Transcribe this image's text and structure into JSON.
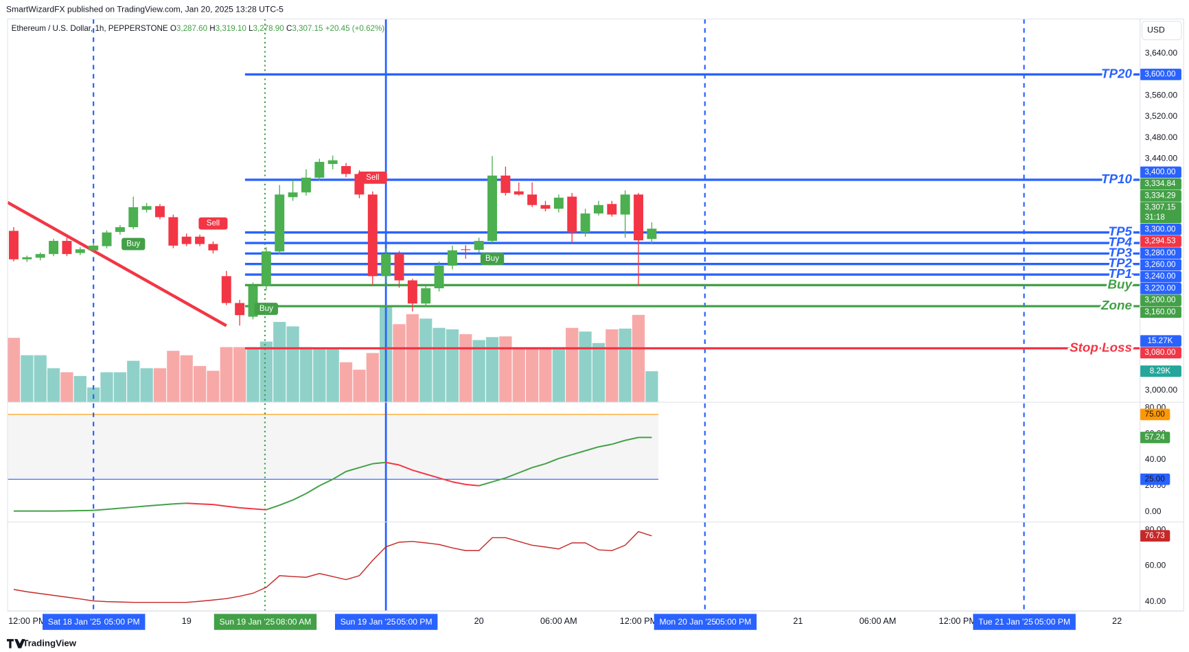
{
  "header": {
    "publisher": "SmartWizardFX published on TradingView.com, Jan 20, 2025 13:28 UTC-5",
    "symbol": "Ethereum / U.S. Dollar, 1h, PEPPERSTONE",
    "ohlc": [
      {
        "key": "O",
        "value": "3,287.60"
      },
      {
        "key": "H",
        "value": "3,319.10"
      },
      {
        "key": "L",
        "value": "3,278.90"
      },
      {
        "key": "C",
        "value": "3,307.15"
      }
    ],
    "change": "+20.45 (+0.62%)"
  },
  "currency": "USD",
  "footer": "TradingView",
  "chart_data": {
    "type": "candlestick",
    "up_color": "#4caf50",
    "down_color": "#f23645",
    "xlim": [
      -0.46,
      84.7
    ],
    "ylim": [
      2978.3,
      3697.9
    ],
    "yticks": [
      {
        "value": 3640,
        "label": "3,640.00"
      },
      {
        "value": 3560,
        "label": "3,560.00"
      },
      {
        "value": 3520,
        "label": "3,520.00"
      },
      {
        "value": 3480,
        "label": "3,480.00"
      },
      {
        "value": 3440,
        "label": "3,440.00"
      },
      {
        "value": 3000,
        "label": "3,000.00"
      }
    ],
    "xticks": [
      {
        "value": 1,
        "label": "12:00 PM"
      },
      {
        "value": 13,
        "label": "19"
      },
      {
        "value": 35,
        "label": "20"
      },
      {
        "value": 41,
        "label": "06:00 AM"
      },
      {
        "value": 47,
        "label": "12:00 PM"
      },
      {
        "value": 59,
        "label": "21"
      },
      {
        "value": 65,
        "label": "06:00 AM"
      },
      {
        "value": 71,
        "label": "12:00 PM"
      },
      {
        "value": 83,
        "label": "22"
      }
    ],
    "open": [
      3303,
      3249,
      3252,
      3259,
      3284,
      3261,
      3266,
      3274,
      3301,
      3310,
      3343,
      3350,
      3329,
      3292,
      3292,
      3278,
      3217,
      3166,
      3140,
      3198,
      3264,
      3367,
      3376,
      3404,
      3430,
      3426,
      3411,
      3372,
      3217,
      3259,
      3209,
      3165,
      3194,
      3237,
      3268,
      3267,
      3284,
      3408,
      3378,
      3372,
      3352,
      3345,
      3368,
      3300,
      3336,
      3354,
      3334,
      3372,
      3287.6
    ],
    "high": [
      3310,
      3256,
      3262,
      3288,
      3290,
      3272,
      3280,
      3304,
      3314,
      3368,
      3356,
      3354,
      3334,
      3298,
      3296,
      3283,
      3227,
      3172,
      3205,
      3272,
      3390,
      3400,
      3420,
      3440,
      3446,
      3432,
      3418,
      3378,
      3270,
      3265,
      3212,
      3200,
      3245,
      3275,
      3276,
      3290,
      3445,
      3425,
      3395,
      3395,
      3360,
      3372,
      3375,
      3345,
      3360,
      3360,
      3380,
      3375,
      3319.1
    ],
    "low": [
      3245,
      3244,
      3247,
      3255,
      3255,
      3257,
      3262,
      3270,
      3296,
      3306,
      3338,
      3325,
      3270,
      3274,
      3274,
      3260,
      3162,
      3123,
      3135,
      3190,
      3258,
      3360,
      3370,
      3398,
      3420,
      3405,
      3365,
      3200,
      3205,
      3195,
      3150,
      3158,
      3188,
      3230,
      3250,
      3262,
      3280,
      3370,
      3370,
      3348,
      3340,
      3338,
      3280,
      3292,
      3332,
      3330,
      3290,
      3198,
      3278.9
    ],
    "close": [
      3249,
      3253,
      3259,
      3284,
      3259,
      3268,
      3275,
      3300,
      3310,
      3348,
      3350,
      3329,
      3275,
      3278,
      3278,
      3266,
      3166,
      3143,
      3198,
      3264,
      3372,
      3376,
      3404,
      3434,
      3437,
      3411,
      3372,
      3217,
      3259,
      3209,
      3165,
      3194,
      3237,
      3266,
      3267,
      3284,
      3408,
      3375,
      3372,
      3352,
      3345,
      3366,
      3300,
      3336,
      3352,
      3334,
      3372,
      3285,
      3307.15
    ],
    "volume": {
      "ylim": [
        0,
        102400
      ],
      "up_color": "#8fd1c9",
      "down_color": "#f7a9a8",
      "values": [
        17300,
        12600,
        12600,
        9100,
        8000,
        7000,
        3900,
        8000,
        8000,
        11100,
        9100,
        9100,
        13800,
        12600,
        9700,
        8400,
        14800,
        14800,
        14800,
        16300,
        21600,
        20400,
        14800,
        14200,
        14200,
        10700,
        8700,
        13200,
        25800,
        21000,
        23700,
        22500,
        20000,
        19600,
        18300,
        16700,
        17500,
        17700,
        14800,
        14800,
        14800,
        14800,
        20000,
        19000,
        15900,
        19600,
        19800,
        23500,
        8290
      ],
      "last_label": "8.29K",
      "ma": {
        "value": 15270,
        "label": "15.27K",
        "color": "#2962ff"
      },
      "tag_color": "#26a69a"
    },
    "levels_start": 17.4,
    "levels": [
      {
        "name": "TP20",
        "value": 3600,
        "tag": "3,600.00",
        "color": "#2962ff"
      },
      {
        "name": "TP10",
        "value": 3400,
        "tag": "3,400.00",
        "color": "#2962ff"
      },
      {
        "name": "TP5",
        "value": 3300,
        "tag": "3,300.00",
        "color": "#2962ff"
      },
      {
        "name": "TP4",
        "value": 3280,
        "tag": "3,280.00",
        "color": "#2962ff"
      },
      {
        "name": "TP3",
        "value": 3260,
        "tag": "3,260.00",
        "color": "#2962ff"
      },
      {
        "name": "TP2",
        "value": 3240,
        "tag": "3,240.00",
        "color": "#2962ff"
      },
      {
        "name": "TP1",
        "value": 3220,
        "tag": "3,220.00",
        "color": "#2962ff"
      },
      {
        "name": "Buy",
        "value": 3200,
        "tag": "3,200.00",
        "color": "#43a047"
      },
      {
        "name": "Zone",
        "value": 3160,
        "tag": "3,160.00",
        "color": "#43a047"
      },
      {
        "name": "Stop Loss",
        "value": 3080,
        "tag": "3,080.00",
        "color": "#f23645"
      }
    ],
    "price_tags": [
      {
        "value": 3334.84,
        "label": "3,334.84",
        "color": "#43a047"
      },
      {
        "value": 3334.29,
        "label": "3,334.29",
        "color": "#43a047"
      },
      {
        "value": 3307.15,
        "label": "3,307.15",
        "sub": "31:18",
        "color": "#43a047"
      },
      {
        "value": 3294.53,
        "label": "3,294.53",
        "color": "#f23645"
      }
    ],
    "annotations": [
      {
        "text": "Buy",
        "at": 9,
        "price": 3278,
        "color": "#43a047"
      },
      {
        "text": "Sell",
        "at": 15,
        "price": 3317,
        "color": "#f23645"
      },
      {
        "text": "Buy",
        "at": 19,
        "price": 3155,
        "color": "#43a047"
      },
      {
        "text": "Sell",
        "at": 27,
        "price": 3404,
        "color": "#f23645"
      },
      {
        "text": "Buy",
        "at": 36,
        "price": 3250,
        "color": "#43a047"
      }
    ],
    "drawings": [
      {
        "from_at": -0.46,
        "from_price": 3357,
        "to_at": 16,
        "to_price": 3123,
        "color": "#f23645"
      }
    ],
    "markers": [
      {
        "date": "Sat 18 Jan '25",
        "time": "05:00 PM",
        "at": 6,
        "color": "#2962ff",
        "style": "dashed"
      },
      {
        "date": "Sun 19 Jan '25",
        "time": "08:00 AM",
        "at": 18.9,
        "color": "#43a047",
        "style": "dotted"
      },
      {
        "date": "Sun 19 Jan '25",
        "time": "05:00 PM",
        "at": 28,
        "color": "#2962ff",
        "style": "solid"
      },
      {
        "date": "Mon 20 Jan '25",
        "time": "05:00 PM",
        "at": 52,
        "color": "#2962ff",
        "style": "dashed"
      },
      {
        "date": "Tue 21 Jan '25",
        "time": "05:00 PM",
        "at": 76,
        "color": "#2962ff",
        "style": "dashed"
      }
    ],
    "oscillators": [
      {
        "type": "line",
        "ylim": [
          -7.06,
          84.1
        ],
        "up_color": "#43a047",
        "down_color": "#f23645",
        "yticks": [
          {
            "value": 80,
            "label": "80.00"
          },
          {
            "value": 60,
            "label": "60.00"
          },
          {
            "value": 40,
            "label": "40.00"
          },
          {
            "value": 20,
            "label": "20.00"
          },
          {
            "value": 0,
            "label": "0.00"
          }
        ],
        "levels": [
          {
            "value": 75,
            "label": "75.00",
            "color": "#ff9800"
          },
          {
            "value": 25,
            "label": "25.00",
            "color": "#2962ff"
          }
        ],
        "values": [
          0.5,
          0.5,
          0.5,
          0.5,
          0.6,
          0.8,
          1,
          1.8,
          2.7,
          3.5,
          4.4,
          5.2,
          6,
          6.5,
          6,
          5.5,
          4.2,
          3,
          2.2,
          1.5,
          5,
          9,
          14,
          20,
          25,
          31,
          34,
          37,
          38,
          36,
          32,
          29,
          26,
          23,
          21,
          20,
          23,
          26,
          30,
          34,
          37,
          41,
          44,
          47,
          50,
          52,
          55,
          57.24,
          57.24
        ],
        "last_label": "57.24"
      },
      {
        "type": "line",
        "ylim": [
          35.3,
          84.26
        ],
        "color": "#c62828",
        "yticks": [
          {
            "value": 80,
            "label": "80.00"
          },
          {
            "value": 60,
            "label": "60.00"
          },
          {
            "value": 40,
            "label": "40.00"
          }
        ],
        "values": [
          46.8,
          45.5,
          44.5,
          43.5,
          42.5,
          41.5,
          40.4,
          40,
          39.8,
          39.6,
          39.6,
          39.6,
          39.6,
          39.6,
          40.2,
          40.9,
          41.7,
          43,
          44.7,
          48,
          54.5,
          54,
          53.6,
          55.7,
          54,
          52.3,
          54.5,
          63,
          70.6,
          73.2,
          73.6,
          72.8,
          71.9,
          70,
          68.5,
          68.5,
          75.7,
          75.7,
          73.6,
          71.5,
          70.5,
          69.4,
          72.8,
          72.8,
          68.9,
          68.5,
          71.5,
          79.1,
          76.73
        ],
        "last_label": "76.73"
      }
    ]
  }
}
